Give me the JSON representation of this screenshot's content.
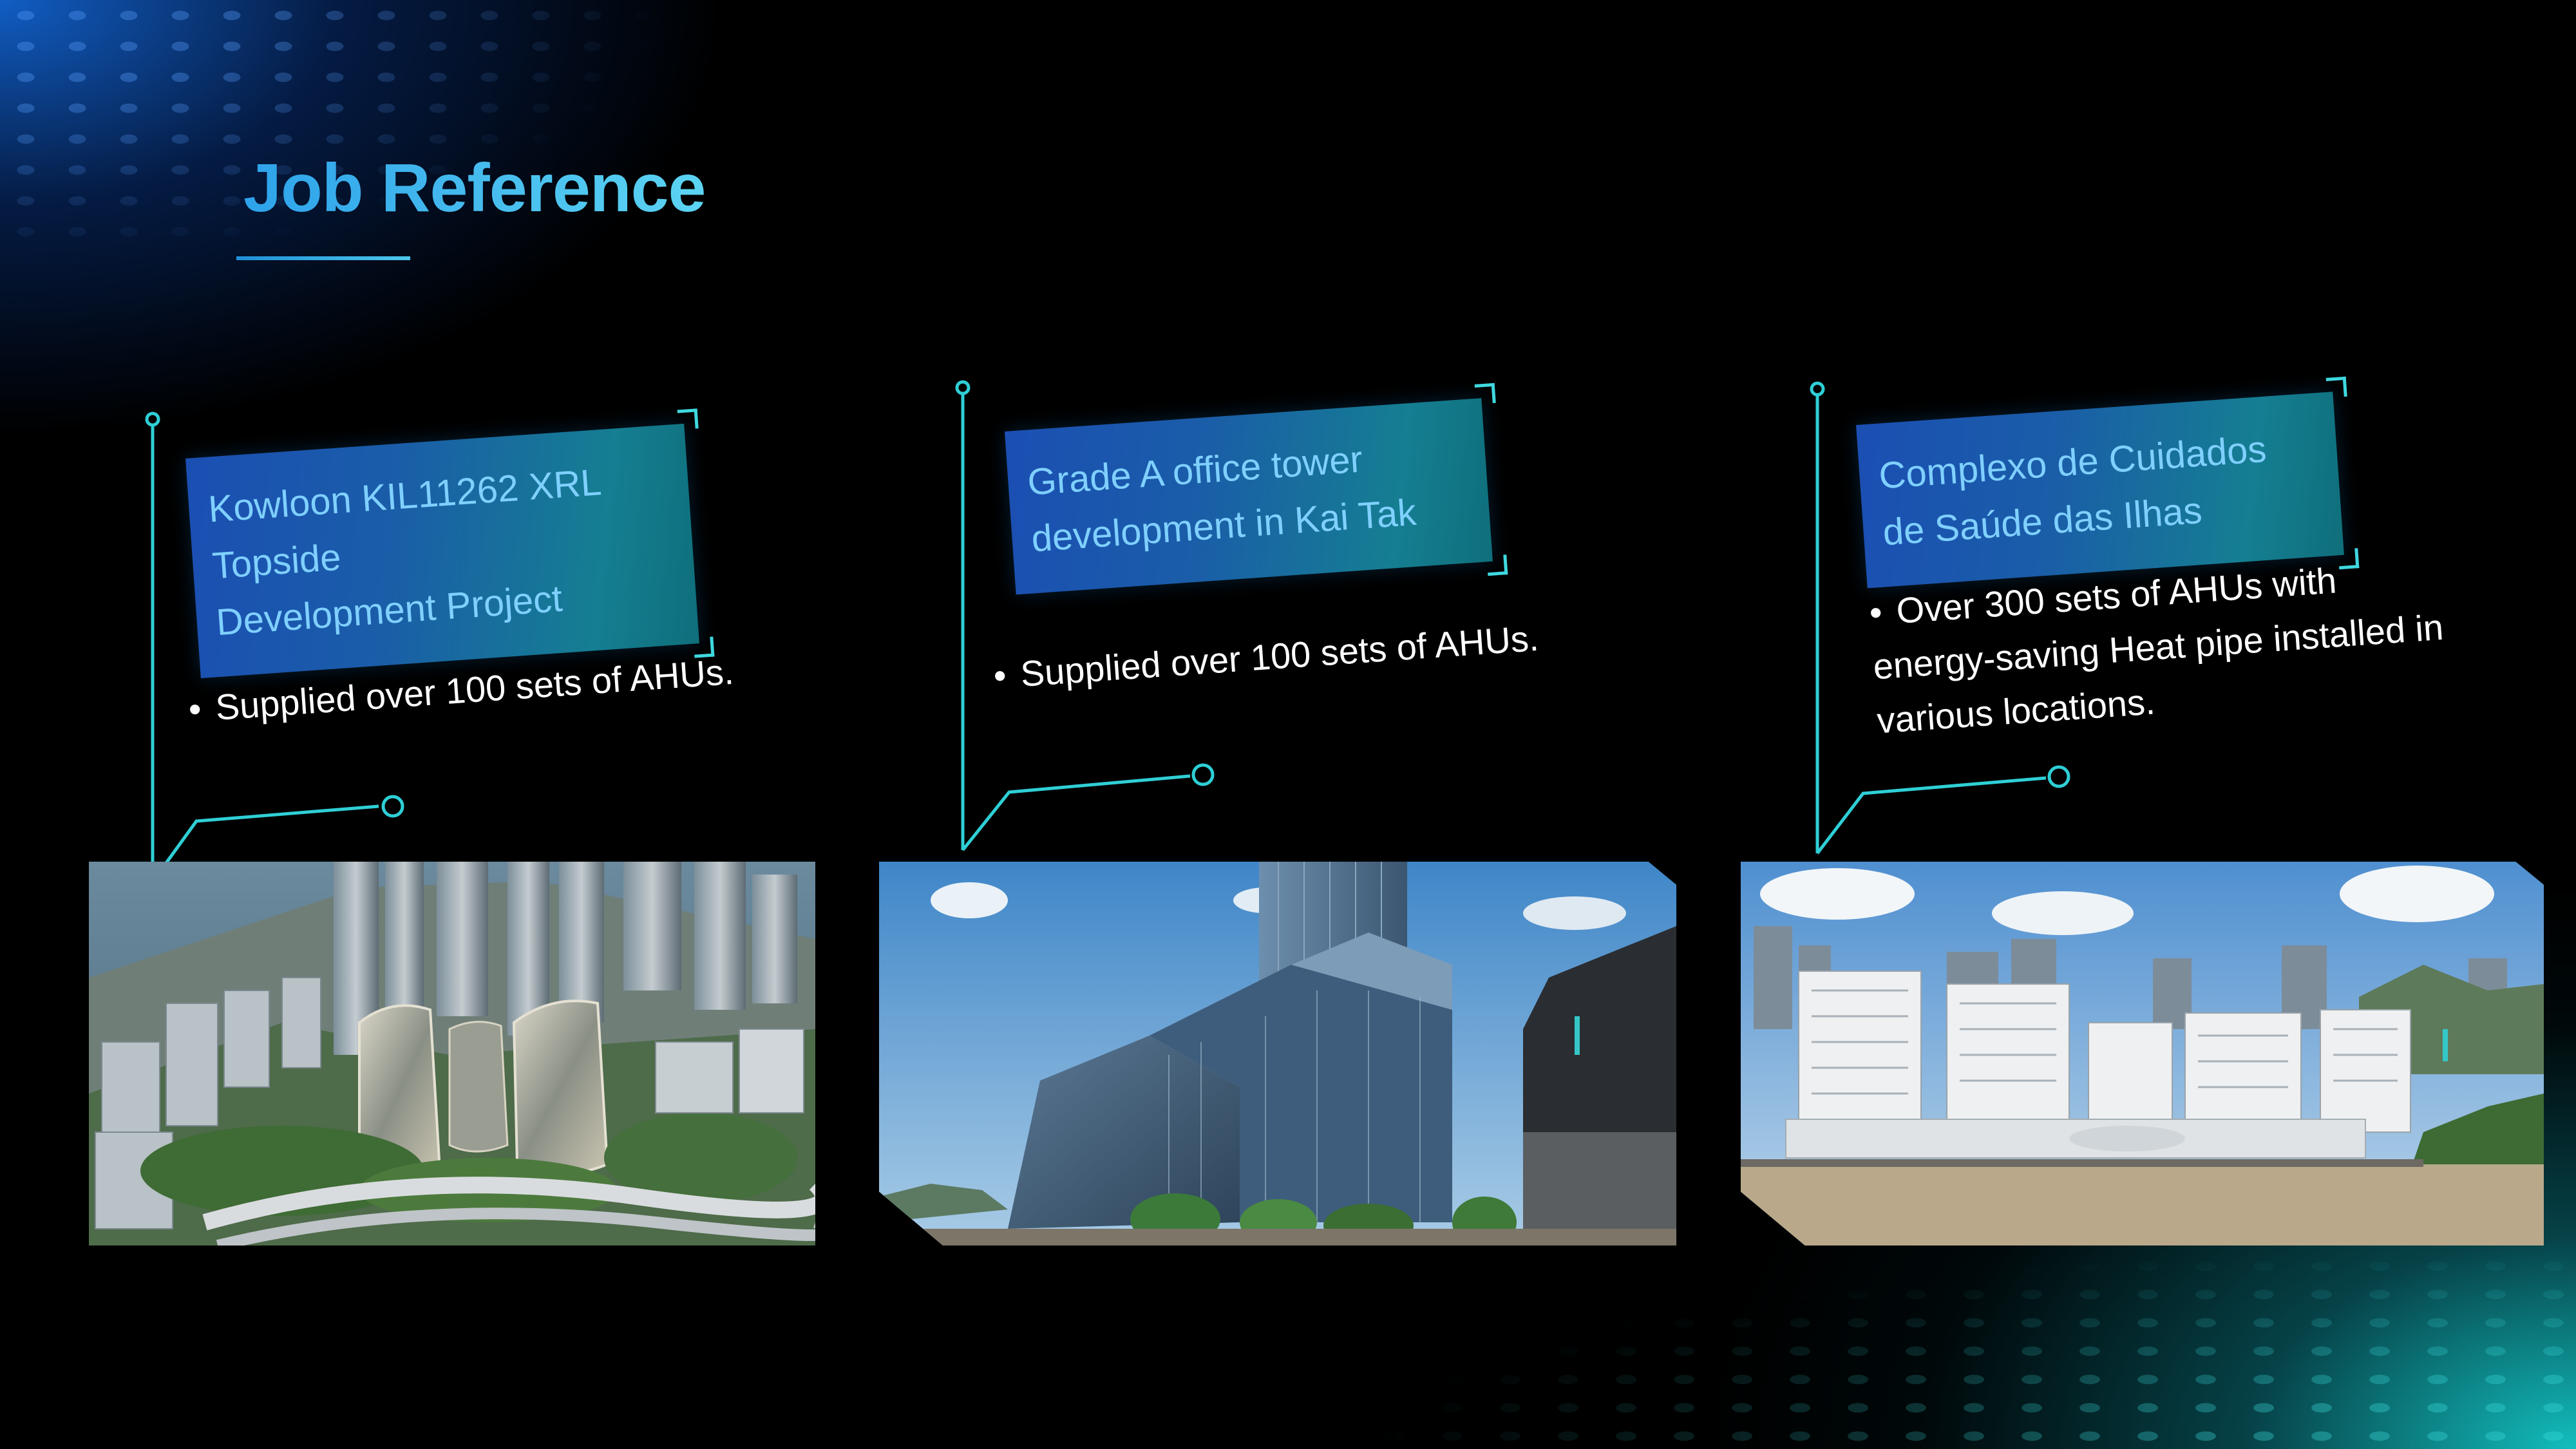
{
  "slide": {
    "title": "Job Reference"
  },
  "projects": [
    {
      "heading_line1": "Kowloon KIL11262 XRL Topside",
      "heading_line2": "Development Project",
      "bullet_line1": "Supplied over 100 sets of AHUs.",
      "bullet_line2": "",
      "bullet_line3": "",
      "photo_icon": "skyscraper-cluster-aerial-photo"
    },
    {
      "heading_line1": "Grade A office tower",
      "heading_line2": "development in Kai Tak",
      "bullet_line1": "Supplied over 100 sets of AHUs.",
      "bullet_line2": "",
      "bullet_line3": "",
      "photo_icon": "glass-office-tower-photo"
    },
    {
      "heading_line1": "Complexo de Cuidados",
      "heading_line2": "de Saúde das Ilhas",
      "bullet_line1": "Over 300 sets of AHUs with",
      "bullet_line2": "energy-saving Heat pipe installed in",
      "bullet_line3": "various locations.",
      "photo_icon": "hospital-complex-waterfront-photo"
    }
  ],
  "bullet_symbol": "•",
  "colors": {
    "title": "#35b4ef",
    "accent_line": "#3fd8e0",
    "heading_text": "#7fd0ff",
    "heading_box_start": "#1b4fb3",
    "heading_box_end": "#0f6f7b"
  }
}
